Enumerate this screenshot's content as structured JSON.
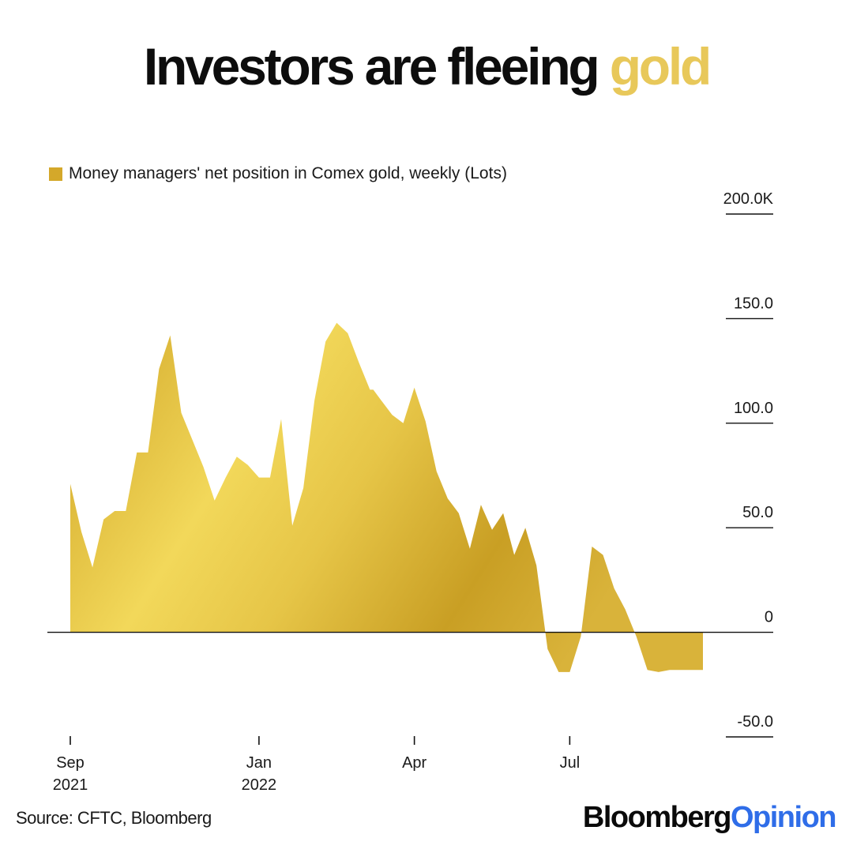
{
  "title": {
    "main": "Investors are fleeing ",
    "accent": "gold"
  },
  "colors": {
    "gold_light": "#f2d85a",
    "gold_mid": "#e0bb3a",
    "gold_dark": "#c69a1e",
    "axis": "#111111",
    "brand_blue": "#2f6de8"
  },
  "legend": {
    "label": "Money managers' net position in Comex gold, weekly (Lots)",
    "swatch_color": "#d4a82a"
  },
  "chart_data": {
    "type": "area",
    "title": "Investors are fleeing gold",
    "series_name": "Money managers' net position in Comex gold, weekly (Lots)",
    "unit": "thousand lots",
    "ylim": [
      -50,
      200
    ],
    "yticks": [
      {
        "value": 200,
        "label": "200.0K"
      },
      {
        "value": 150,
        "label": "150.0"
      },
      {
        "value": 100,
        "label": "100.0"
      },
      {
        "value": 50,
        "label": "50.0"
      },
      {
        "value": 0,
        "label": "0"
      },
      {
        "value": -50,
        "label": "-50.0"
      }
    ],
    "xticks": [
      {
        "week": 0,
        "label": "Sep",
        "sublabel": "2021"
      },
      {
        "week": 17,
        "label": "Jan",
        "sublabel": "2022"
      },
      {
        "week": 31,
        "label": "Apr",
        "sublabel": ""
      },
      {
        "week": 45,
        "label": "Jul",
        "sublabel": ""
      }
    ],
    "weeks": [
      0,
      1,
      2,
      3,
      4,
      5,
      6,
      7,
      8,
      9,
      10,
      11,
      12,
      13,
      14,
      15,
      16,
      17,
      18,
      19,
      20,
      21,
      22,
      23,
      24,
      25,
      26,
      27,
      27.3,
      28,
      29,
      30,
      31,
      32,
      33,
      34,
      35,
      36,
      37,
      38,
      39,
      40,
      41,
      42,
      43,
      44,
      45,
      46,
      47,
      48,
      49,
      50,
      51,
      52,
      53,
      54,
      55,
      56,
      57
    ],
    "values": [
      71,
      48,
      31,
      54,
      58,
      58,
      86,
      86,
      126,
      142,
      105,
      92,
      79,
      63,
      74,
      84,
      80,
      74,
      74,
      102,
      51,
      69,
      111,
      139,
      148,
      143,
      129,
      116,
      116,
      111,
      104,
      100,
      117,
      101,
      77,
      64,
      57,
      40,
      61,
      49,
      57,
      37,
      50,
      32,
      -8,
      -19,
      -19,
      -2,
      41,
      37,
      21,
      11,
      -2,
      -18,
      -19,
      -18,
      -18,
      -18,
      -18
    ],
    "values_note": "values in thousands of lots, read from the area outline"
  },
  "source": "Source: CFTC, Bloomberg",
  "brand": {
    "part1": "Bloomberg",
    "part2": "Opinion"
  }
}
